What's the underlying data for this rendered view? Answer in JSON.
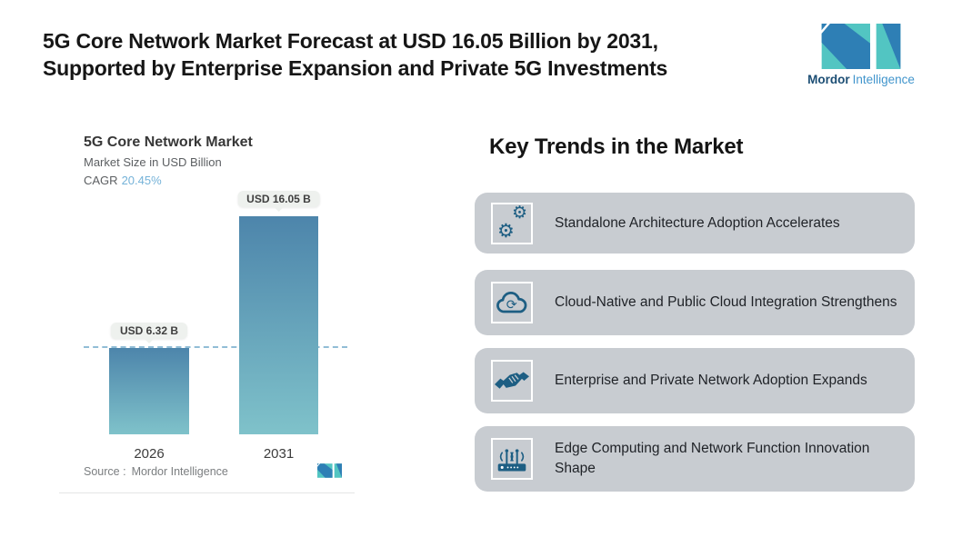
{
  "header": {
    "title": "5G Core Network Market Forecast at USD 16.05 Billion by 2031,\nSupported by Enterprise Expansion and Private 5G Investments"
  },
  "brand": {
    "name_bold": "Mordor",
    "name_light": "Intelligence"
  },
  "chart": {
    "title": "5G Core Network Market",
    "subtitle": "Market Size in USD Billion",
    "cagr_label": "CAGR",
    "cagr_value": "20.45%",
    "bars": [
      {
        "year": "2026",
        "label": "USD 6.32 B"
      },
      {
        "year": "2031",
        "label": "USD 16.05 B"
      }
    ],
    "source_label": "Source :",
    "source_value": "Mordor Intelligence"
  },
  "chart_data": {
    "type": "bar",
    "title": "5G Core Network Market",
    "subtitle": "Market Size in USD Billion",
    "cagr_percent": 20.45,
    "categories": [
      "2026",
      "2031"
    ],
    "values": [
      6.32,
      16.05
    ],
    "unit": "USD Billion",
    "data_labels": [
      "USD 6.32 B",
      "USD 16.05 B"
    ],
    "ylim": [
      0,
      16.05
    ],
    "grid": false,
    "legend": "none",
    "annotations": [
      "horizontal dashed reference line at 2026 value (6.32)"
    ],
    "source": "Mordor Intelligence"
  },
  "trends": {
    "heading": "Key Trends in the Market",
    "items": [
      {
        "icon": "gears-icon",
        "text": "Standalone Architecture Adoption Accelerates"
      },
      {
        "icon": "cloud-sync-icon",
        "text": "Cloud-Native and Public Cloud Integration Strengthens"
      },
      {
        "icon": "handshake-icon",
        "text": "Enterprise and Private Network Adoption Expands"
      },
      {
        "icon": "router-signal-icon",
        "text": "Edge Computing and Network Function Innovation Shape"
      }
    ]
  },
  "colors": {
    "bar_gradient_top": "#4d85ab",
    "bar_gradient_bottom": "#7fc2ca",
    "dashed_line": "#91bdd6",
    "pill_bg": "#eef1ee",
    "card_bg": "#c8ccd1",
    "icon_blue": "#1d5e83",
    "cagr_blue": "#74b2d8",
    "logo_blue": "#2e7fb5",
    "logo_teal": "#52c5c2",
    "logo_text_dark": "#1c4e74",
    "logo_text_light": "#4195cc"
  }
}
